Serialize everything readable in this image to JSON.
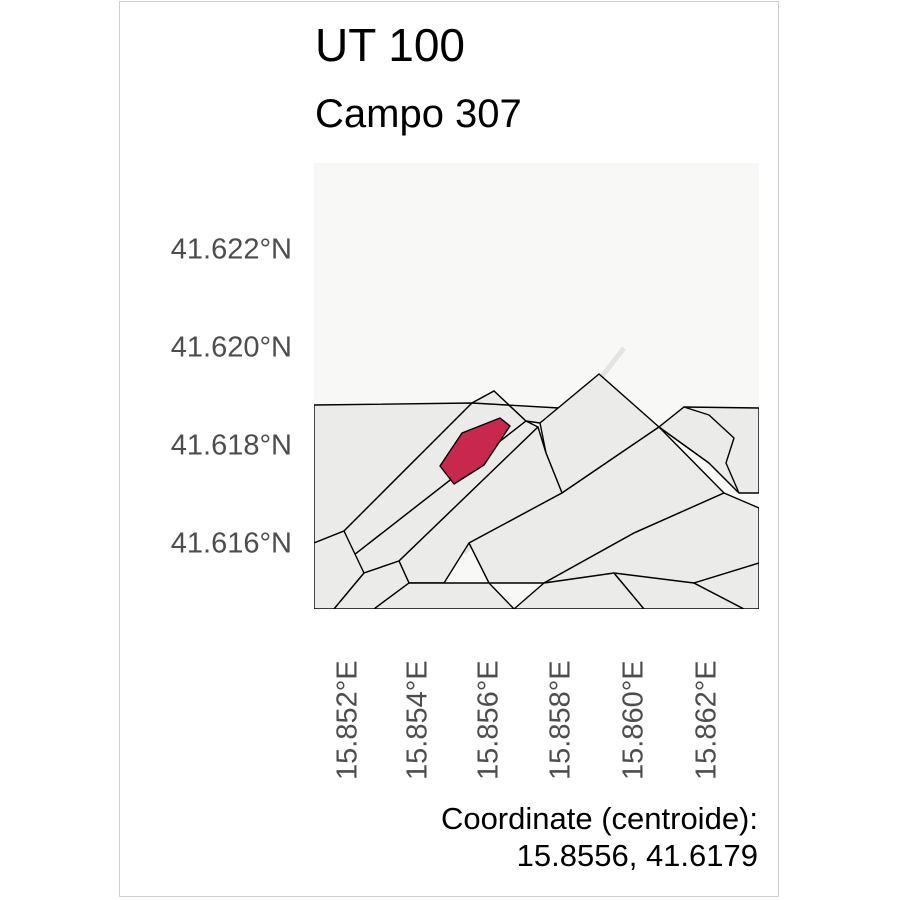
{
  "header": {
    "title": "UT 100",
    "subtitle": "Campo 307"
  },
  "map": {
    "y_ticks": [
      "41.622°N",
      "41.620°N",
      "41.618°N",
      "41.616°N"
    ],
    "x_ticks": [
      "15.852°E",
      "15.854°E",
      "15.856°E",
      "15.858°E",
      "15.860°E",
      "15.862°E"
    ],
    "highlight_color": "#c8284e",
    "parcel_fill": "#ebebea",
    "background_fill": "#f8f8f6"
  },
  "caption": {
    "line1": "Coordinate (centroide):",
    "line2": "15.8556, 41.6179"
  }
}
